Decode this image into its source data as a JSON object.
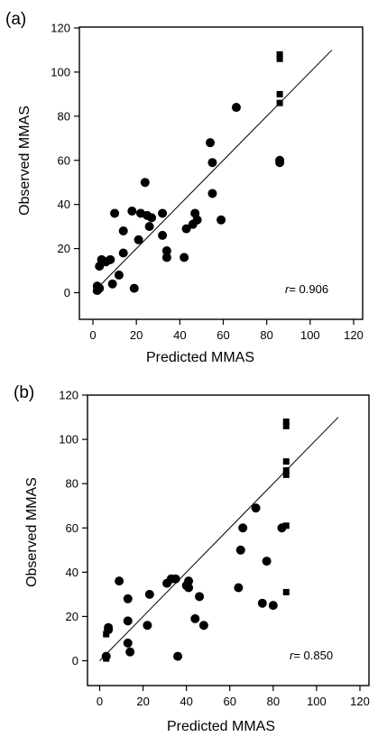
{
  "chart_data": [
    {
      "type": "scatter",
      "panel_label": "(a)",
      "xlabel": "Predicted MMAS",
      "ylabel": "Observed MMAS",
      "xlim": [
        -5,
        125
      ],
      "ylim": [
        -5,
        120
      ],
      "xticks": [
        0,
        20,
        40,
        60,
        80,
        100,
        120
      ],
      "yticks": [
        0,
        20,
        40,
        60,
        80,
        100,
        120
      ],
      "r_prefix": "r",
      "r_value": "= 0.906",
      "fit_line": [
        [
          0,
          0
        ],
        [
          110,
          110
        ]
      ],
      "circles": [
        [
          2,
          1
        ],
        [
          3,
          2
        ],
        [
          2,
          3
        ],
        [
          3,
          12
        ],
        [
          4,
          15
        ],
        [
          6,
          14
        ],
        [
          8,
          15
        ],
        [
          9,
          4
        ],
        [
          10,
          36
        ],
        [
          12,
          8
        ],
        [
          14,
          28
        ],
        [
          14,
          18
        ],
        [
          18,
          37
        ],
        [
          19,
          2
        ],
        [
          21,
          24
        ],
        [
          22,
          36
        ],
        [
          24,
          50
        ],
        [
          25,
          35
        ],
        [
          27,
          34
        ],
        [
          26,
          30
        ],
        [
          32,
          36
        ],
        [
          32,
          26
        ],
        [
          34,
          16
        ],
        [
          34,
          19
        ],
        [
          42,
          16
        ],
        [
          43,
          29
        ],
        [
          46,
          31
        ],
        [
          47,
          36
        ],
        [
          48,
          33
        ],
        [
          54,
          68
        ],
        [
          55,
          59
        ],
        [
          55,
          45
        ],
        [
          59,
          33
        ],
        [
          66,
          84
        ],
        [
          86,
          60
        ],
        [
          86,
          59
        ]
      ],
      "squares": [
        [
          86,
          106
        ],
        [
          86,
          108
        ],
        [
          86,
          90
        ],
        [
          86,
          86
        ]
      ]
    },
    {
      "type": "scatter",
      "panel_label": "(b)",
      "xlabel": "Predicted MMAS",
      "ylabel": "Observed MMAS",
      "xlim": [
        -5,
        125
      ],
      "ylim": [
        -5,
        120
      ],
      "xticks": [
        0,
        20,
        40,
        60,
        80,
        100,
        120
      ],
      "yticks": [
        0,
        20,
        40,
        60,
        80,
        100,
        120
      ],
      "r_prefix": "r",
      "r_value": "= 0.850",
      "fit_line": [
        [
          0,
          0
        ],
        [
          110,
          110
        ]
      ],
      "circles": [
        [
          3,
          2
        ],
        [
          4,
          14
        ],
        [
          4,
          15
        ],
        [
          9,
          36
        ],
        [
          13,
          8
        ],
        [
          13,
          28
        ],
        [
          13,
          18
        ],
        [
          14,
          4
        ],
        [
          22,
          16
        ],
        [
          23,
          30
        ],
        [
          31,
          35
        ],
        [
          33,
          37
        ],
        [
          35,
          37
        ],
        [
          36,
          2
        ],
        [
          40,
          34
        ],
        [
          41,
          36
        ],
        [
          41,
          33
        ],
        [
          44,
          19
        ],
        [
          46,
          29
        ],
        [
          48,
          16
        ],
        [
          64,
          33
        ],
        [
          65,
          50
        ],
        [
          66,
          60
        ],
        [
          72,
          69
        ],
        [
          75,
          26
        ],
        [
          77,
          45
        ],
        [
          80,
          25
        ],
        [
          84,
          60
        ]
      ],
      "squares": [
        [
          3,
          1
        ],
        [
          3,
          12
        ],
        [
          86,
          106
        ],
        [
          86,
          108
        ],
        [
          86,
          90
        ],
        [
          86,
          84
        ],
        [
          86,
          86
        ],
        [
          86,
          61
        ],
        [
          86,
          31
        ]
      ]
    }
  ]
}
